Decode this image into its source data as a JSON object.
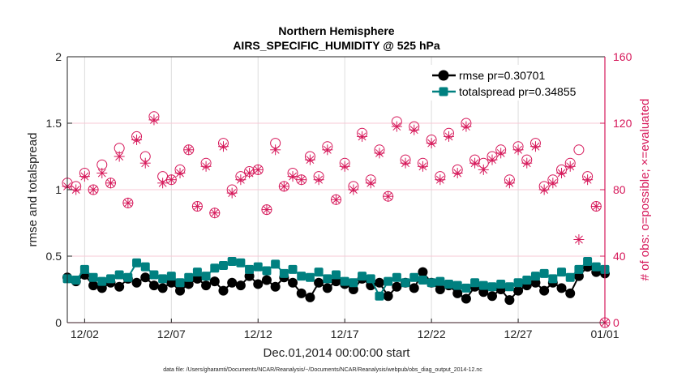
{
  "chart_data": {
    "type": "line",
    "title": [
      "Northern Hemisphere",
      "AIRS_SPECIFIC_HUMIDITY @ 525 hPa"
    ],
    "xlabel": "Dec.01,2014 00:00:00 start",
    "ylabel_left": "rmse and totalspread",
    "ylabel_right": "# of obs: o=possible; ×=evaluated",
    "footer": "data file: /Users/gharamti/Documents/NCAR/Reanalysis/~/Documents/NCAR/Reanalysis/webpub/obs_diag_output_2014-12.nc",
    "x_unit": "days since Dec.01,2014 00:00:00",
    "x_step": 0.5,
    "xlim": [
      0,
      31
    ],
    "ylim_left": [
      0,
      2
    ],
    "ylim_right": [
      0,
      160
    ],
    "xticks": [
      {
        "value": 1,
        "label": "12/02"
      },
      {
        "value": 6,
        "label": "12/07"
      },
      {
        "value": 11,
        "label": "12/12"
      },
      {
        "value": 16,
        "label": "12/17"
      },
      {
        "value": 21,
        "label": "12/22"
      },
      {
        "value": 26,
        "label": "12/27"
      },
      {
        "value": 31,
        "label": "01/01"
      }
    ],
    "yticks_left": [
      {
        "value": 0,
        "label": "0"
      },
      {
        "value": 0.5,
        "label": "0.5"
      },
      {
        "value": 1,
        "label": "1"
      },
      {
        "value": 1.5,
        "label": "1.5"
      },
      {
        "value": 2,
        "label": "2"
      }
    ],
    "yticks_right": [
      {
        "value": 0,
        "label": "0"
      },
      {
        "value": 40,
        "label": "40"
      },
      {
        "value": 80,
        "label": "80"
      },
      {
        "value": 120,
        "label": "120"
      },
      {
        "value": 160,
        "label": "160"
      }
    ],
    "grid": true,
    "legend_position": "top-right",
    "colors": {
      "rmse": "#000000",
      "totalspread": "#008080",
      "obs": "#d6185a",
      "axis_left": "#222222",
      "axis_right": "#d6185a"
    },
    "series": [
      {
        "name": "rmse pr=0.30701",
        "axis": "left",
        "marker": "circle",
        "values": [
          0.34,
          0.31,
          0.36,
          0.28,
          0.26,
          0.3,
          0.27,
          0.33,
          0.3,
          0.34,
          0.28,
          0.26,
          0.3,
          0.24,
          0.29,
          0.33,
          0.28,
          0.31,
          0.24,
          0.3,
          0.28,
          0.35,
          0.29,
          0.32,
          0.27,
          0.34,
          0.3,
          0.22,
          0.19,
          0.3,
          0.26,
          0.31,
          0.29,
          0.25,
          0.33,
          0.28,
          0.3,
          0.2,
          0.27,
          0.3,
          0.26,
          0.38,
          0.3,
          0.25,
          0.28,
          0.22,
          0.18,
          0.27,
          0.23,
          0.2,
          0.25,
          0.17,
          0.24,
          0.28,
          0.3,
          0.24,
          0.3,
          0.26,
          0.22,
          0.35,
          0.42,
          0.38,
          0.37
        ]
      },
      {
        "name": "totalspread pr=0.34855",
        "axis": "left",
        "marker": "square",
        "values": [
          0.33,
          0.32,
          0.4,
          0.34,
          0.31,
          0.33,
          0.36,
          0.34,
          0.45,
          0.42,
          0.36,
          0.33,
          0.35,
          0.3,
          0.34,
          0.38,
          0.35,
          0.41,
          0.43,
          0.46,
          0.45,
          0.4,
          0.42,
          0.39,
          0.44,
          0.37,
          0.4,
          0.35,
          0.34,
          0.38,
          0.33,
          0.36,
          0.31,
          0.3,
          0.35,
          0.33,
          0.2,
          0.31,
          0.34,
          0.3,
          0.34,
          0.32,
          0.3,
          0.31,
          0.29,
          0.28,
          0.26,
          0.3,
          0.28,
          0.27,
          0.29,
          0.27,
          0.3,
          0.32,
          0.35,
          0.37,
          0.33,
          0.38,
          0.34,
          0.4,
          0.46,
          0.42,
          0.4
        ]
      },
      {
        "name": "possible",
        "axis": "right",
        "marker": "o",
        "values": [
          84,
          82,
          90,
          80,
          95,
          84,
          105,
          72,
          112,
          100,
          124,
          88,
          86,
          92,
          104,
          70,
          96,
          66,
          108,
          80,
          88,
          91,
          92,
          68,
          108,
          82,
          90,
          86,
          100,
          88,
          106,
          74,
          96,
          82,
          114,
          86,
          104,
          76,
          121,
          98,
          118,
          96,
          110,
          88,
          114,
          92,
          120,
          98,
          96,
          100,
          104,
          86,
          106,
          98,
          108,
          82,
          86,
          92,
          96,
          104,
          88,
          70,
          0
        ]
      },
      {
        "name": "evaluated",
        "axis": "right",
        "marker": "asterisk",
        "values": [
          82,
          80,
          88,
          80,
          90,
          84,
          100,
          72,
          110,
          96,
          122,
          84,
          86,
          90,
          104,
          70,
          94,
          66,
          106,
          78,
          86,
          90,
          92,
          68,
          104,
          82,
          88,
          86,
          98,
          86,
          104,
          74,
          94,
          80,
          112,
          84,
          102,
          76,
          118,
          96,
          116,
          94,
          108,
          86,
          112,
          90,
          118,
          96,
          92,
          98,
          102,
          84,
          104,
          96,
          106,
          80,
          84,
          90,
          94,
          50,
          86,
          70,
          0
        ]
      }
    ]
  }
}
